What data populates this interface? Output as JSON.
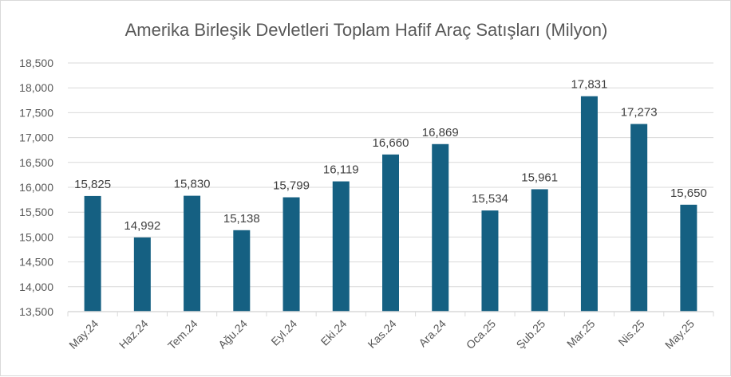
{
  "chart_data": {
    "type": "bar",
    "title": "Amerika Birleşik Devletleri Toplam Hafif Araç Satışları (Milyon)",
    "xlabel": "",
    "ylabel": "",
    "categories": [
      "May.24",
      "Haz.24",
      "Tem.24",
      "Ağu.24",
      "Eyl.24",
      "Eki.24",
      "Kas.24",
      "Ara.24",
      "Oca.25",
      "Şub.25",
      "Mar.25",
      "Nis.25",
      "May.25"
    ],
    "values": [
      15.825,
      14.992,
      15.83,
      15.138,
      15.799,
      16.119,
      16.66,
      16.869,
      15.534,
      15.961,
      17.831,
      17.273,
      15.65
    ],
    "data_labels": [
      "15,825",
      "14,992",
      "15,830",
      "15,138",
      "15,799",
      "16,119",
      "16,660",
      "16,869",
      "15,534",
      "15,961",
      "17,831",
      "17,273",
      "15,650"
    ],
    "ylim": [
      13.5,
      18.5
    ],
    "yticks": [
      13.5,
      14,
      14.5,
      15,
      15.5,
      16,
      16.5,
      17,
      17.5,
      18,
      18.5
    ],
    "ytick_labels": [
      "13,500",
      "14,000",
      "14,500",
      "15,000",
      "15,500",
      "16,000",
      "16,500",
      "17,000",
      "17,500",
      "18,000",
      "18,500"
    ],
    "grid": true,
    "legend": "none",
    "bar_color": "#156082"
  }
}
